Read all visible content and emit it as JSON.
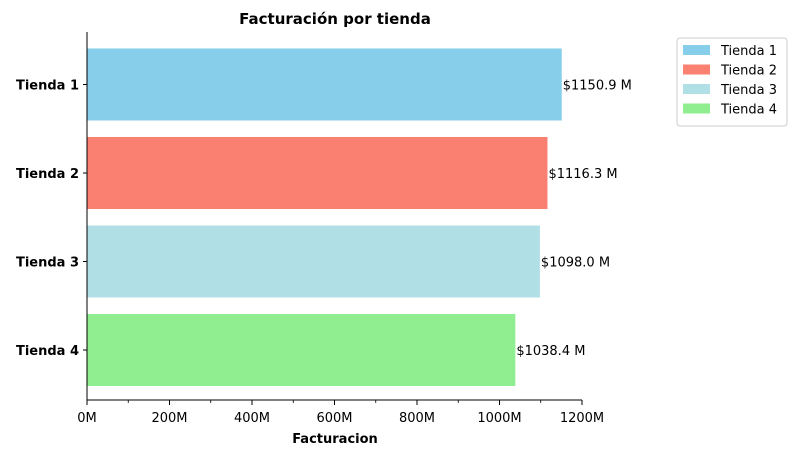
{
  "chart_data": {
    "type": "bar",
    "orientation": "horizontal",
    "title": "Facturación por tienda",
    "xlabel": "Facturacion",
    "ylabel": "",
    "categories": [
      "Tienda 1",
      "Tienda 2",
      "Tienda 3",
      "Tienda 4"
    ],
    "values": [
      1150.9,
      1116.3,
      1098.0,
      1038.4
    ],
    "value_labels": [
      "$1150.9 M",
      "$1116.3 M",
      "$1098.0 M",
      "$1038.4 M"
    ],
    "colors": [
      "#87ceeb",
      "#fa8072",
      "#b0e0e6",
      "#90ee90"
    ],
    "xlim": [
      0,
      1200
    ],
    "xticks": [
      0,
      200,
      400,
      600,
      800,
      1000,
      1200
    ],
    "xtick_labels": [
      "0M",
      "200M",
      "400M",
      "600M",
      "800M",
      "1000M",
      "1200M"
    ],
    "minor_tick_step": 100,
    "grid": false,
    "legend": {
      "placement": "upper-right-outside",
      "entries": [
        "Tienda 1",
        "Tienda 2",
        "Tienda 3",
        "Tienda 4"
      ]
    }
  }
}
